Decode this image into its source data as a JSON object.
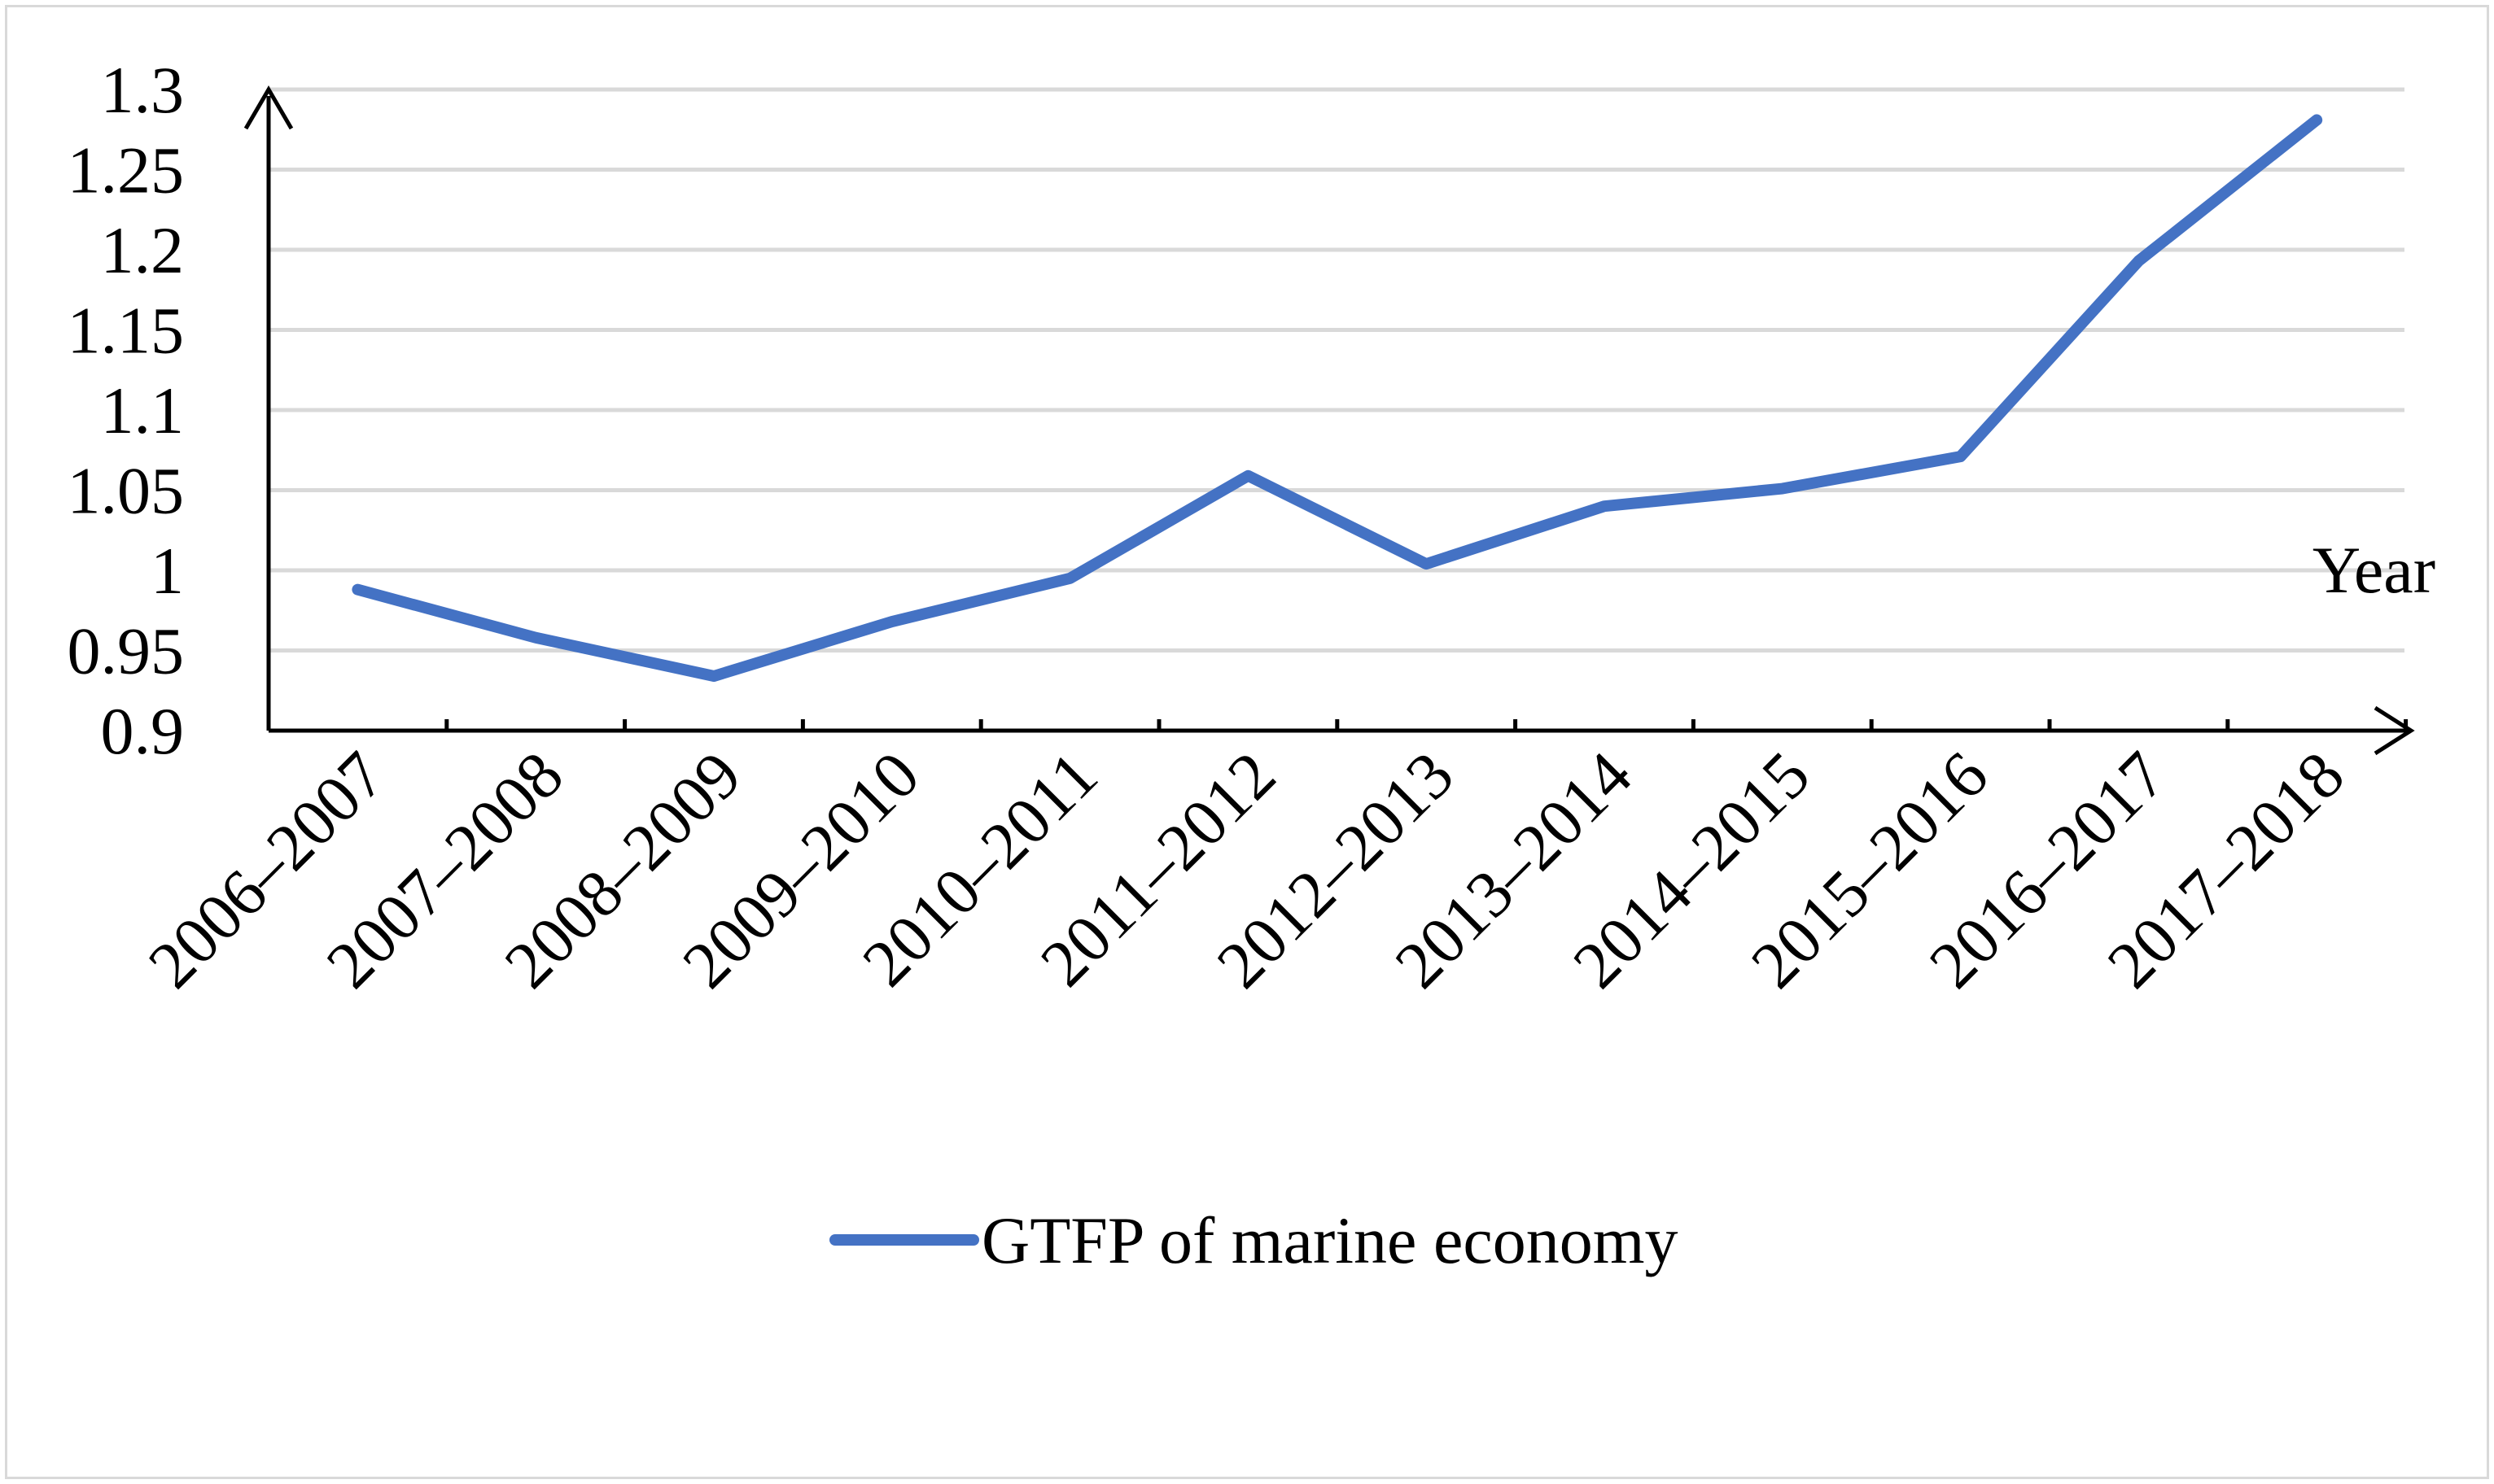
{
  "chart_data": {
    "type": "line",
    "title": "",
    "xlabel": "Year",
    "ylabel": "",
    "ylim": [
      0.9,
      1.3
    ],
    "y_ticks": [
      0.9,
      0.95,
      1,
      1.05,
      1.1,
      1.15,
      1.2,
      1.25,
      1.3
    ],
    "y_tick_labels": [
      "0.9",
      "0.95",
      "1",
      "1.05",
      "1.1",
      "1.15",
      "1.2",
      "1.25",
      "1.3"
    ],
    "grid": true,
    "legend_position": "bottom",
    "categories": [
      "2006–2007",
      "2007–2008",
      "2008–2009",
      "2009–2010",
      "2010–2011",
      "2011–2012",
      "2012–2013",
      "2013–2014",
      "2014–2015",
      "2015–2016",
      "2016–2017",
      "2017–2018"
    ],
    "series": [
      {
        "name": "GTFP of marine economy",
        "color": "#4472c4",
        "values": [
          0.988,
          0.958,
          0.934,
          0.968,
          0.995,
          1.059,
          1.004,
          1.04,
          1.051,
          1.071,
          1.193,
          1.281
        ]
      }
    ]
  }
}
